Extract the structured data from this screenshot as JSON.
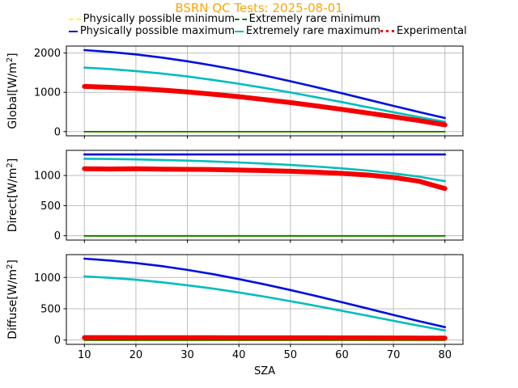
{
  "title": "BSRN QC Tests: 2025-08-01",
  "title_color": "#ffa500",
  "legend": {
    "position": "top-center, two rows, no frame",
    "items": [
      {
        "label": "Physically possible minimum",
        "color": "#ffff00",
        "style": "dashed"
      },
      {
        "label": "Physically possible maximum",
        "color": "#0010dd",
        "style": "dashed"
      },
      {
        "label": "Extremely rare minimum",
        "color": "#007700",
        "style": "dashed"
      },
      {
        "label": "Extremely rare maximum",
        "color": "#00bdbd",
        "style": "dashed"
      },
      {
        "label": "Experimental",
        "color": "#f40000",
        "style": "dotted"
      }
    ]
  },
  "chart_data": {
    "type": "line",
    "grid": true,
    "grid_color": "#bdbdbd",
    "frame_color": "#000000",
    "x_axis": {
      "label": "SZA",
      "lim": [
        6.5,
        83.5
      ],
      "ticks": [
        10,
        20,
        30,
        40,
        50,
        60,
        70,
        80
      ]
    },
    "x": [
      10,
      15,
      20,
      25,
      30,
      35,
      40,
      45,
      50,
      55,
      60,
      65,
      70,
      75,
      80
    ],
    "panels": [
      {
        "id": "global",
        "ylabel": "Global[W/m²]",
        "ylim": [
          -108,
          2178
        ],
        "yticks": [
          0,
          1000,
          2000
        ],
        "series": [
          {
            "key": "pp-min",
            "name": "Physically possible minimum",
            "color": "#ffff00",
            "width": 1.8,
            "values": [
              -4,
              -4,
              -4,
              -4,
              -4,
              -4,
              -4,
              -4,
              -4,
              -4,
              -4,
              -4,
              -4,
              -4,
              -4
            ]
          },
          {
            "key": "pp-max",
            "name": "Physically possible maximum",
            "color": "#0010dd",
            "width": 2.6,
            "values": [
              2074,
              2028,
              1965,
              1886,
              1791,
              1682,
              1560,
              1426,
              1283,
              1132,
              975,
              815,
              655,
              497,
              346
            ]
          },
          {
            "key": "er-min",
            "name": "Extremely rare minimum",
            "color": "#007700",
            "width": 1.8,
            "values": [
              -2,
              -2,
              -2,
              -2,
              -2,
              -2,
              -2,
              -2,
              -2,
              -2,
              -2,
              -2,
              -2,
              -2,
              -2
            ]
          },
          {
            "key": "er-max",
            "name": "Extremely rare maximum",
            "color": "#00bdbd",
            "width": 2.6,
            "values": [
              1629,
              1593,
              1542,
              1479,
              1403,
              1316,
              1218,
              1111,
              996,
              875,
              750,
              622,
              494,
              367,
              247
            ]
          },
          {
            "key": "experimental",
            "name": "Experimental",
            "color": "#f40000",
            "width": 6,
            "values": [
              1150,
              1128,
              1098,
              1057,
              1008,
              951,
              888,
              815,
              738,
              654,
              566,
              473,
              378,
              280,
              172
            ]
          }
        ]
      },
      {
        "id": "direct",
        "ylabel": "Direct[W/m²]",
        "ylim": [
          -72,
          1418
        ],
        "yticks": [
          0,
          500,
          1000
        ],
        "series": [
          {
            "key": "pp-min",
            "name": "Physically possible minimum",
            "color": "#ffff00",
            "width": 1.8,
            "values": [
              -4,
              -4,
              -4,
              -4,
              -4,
              -4,
              -4,
              -4,
              -4,
              -4,
              -4,
              -4,
              -4,
              -4,
              -4
            ]
          },
          {
            "key": "pp-max",
            "name": "Physically possible maximum",
            "color": "#0010dd",
            "width": 2.6,
            "values": [
              1350,
              1350,
              1350,
              1350,
              1350,
              1350,
              1350,
              1350,
              1350,
              1350,
              1350,
              1350,
              1350,
              1350,
              1350
            ]
          },
          {
            "key": "er-min",
            "name": "Extremely rare minimum",
            "color": "#007700",
            "width": 1.8,
            "values": [
              -2,
              -2,
              -2,
              -2,
              -2,
              -2,
              -2,
              -2,
              -2,
              -2,
              -2,
              -2,
              -2,
              -2,
              -2
            ]
          },
          {
            "key": "er-max",
            "name": "Extremely rare maximum",
            "color": "#00bdbd",
            "width": 2.6,
            "values": [
              1279,
              1274,
              1267,
              1258,
              1247,
              1233,
              1217,
              1198,
              1175,
              1149,
              1118,
              1082,
              1037,
              981,
              907
            ]
          },
          {
            "key": "experimental",
            "name": "Experimental",
            "color": "#f40000",
            "width": 6,
            "values": [
              1113,
              1108,
              1112,
              1105,
              1102,
              1100,
              1090,
              1082,
              1070,
              1055,
              1035,
              1008,
              968,
              905,
              785
            ]
          }
        ]
      },
      {
        "id": "diffuse",
        "ylabel": "Diffuse[W/m²]",
        "ylim": [
          -69,
          1365
        ],
        "yticks": [
          0,
          500,
          1000
        ],
        "series": [
          {
            "key": "pp-min",
            "name": "Physically possible minimum",
            "color": "#ffff00",
            "width": 1.8,
            "values": [
              -4,
              -4,
              -4,
              -4,
              -4,
              -4,
              -4,
              -4,
              -4,
              -4,
              -4,
              -4,
              -4,
              -4,
              -4
            ]
          },
          {
            "key": "pp-max",
            "name": "Physically possible maximum",
            "color": "#0010dd",
            "width": 2.6,
            "values": [
              1300,
              1271,
              1231,
              1181,
              1121,
              1052,
              974,
              890,
              799,
              703,
              604,
              503,
              401,
              301,
              206
            ]
          },
          {
            "key": "er-min",
            "name": "Extremely rare minimum",
            "color": "#007700",
            "width": 1.8,
            "values": [
              -2,
              -2,
              -2,
              -2,
              -2,
              -2,
              -2,
              -2,
              -2,
              -2,
              -2,
              -2,
              -2,
              -2,
              -2
            ]
          },
          {
            "key": "er-max",
            "name": "Extremely rare maximum",
            "color": "#00bdbd",
            "width": 2.6,
            "values": [
              1017,
              994,
              963,
              923,
              876,
              821,
              760,
              693,
              621,
              546,
              467,
              388,
              307,
              228,
              153
            ]
          },
          {
            "key": "experimental",
            "name": "Experimental",
            "color": "#f40000",
            "width": 6,
            "values": [
              40,
              39,
              38,
              38,
              37,
              37,
              36,
              36,
              35,
              35,
              34,
              34,
              33,
              32,
              30
            ]
          }
        ]
      }
    ]
  }
}
